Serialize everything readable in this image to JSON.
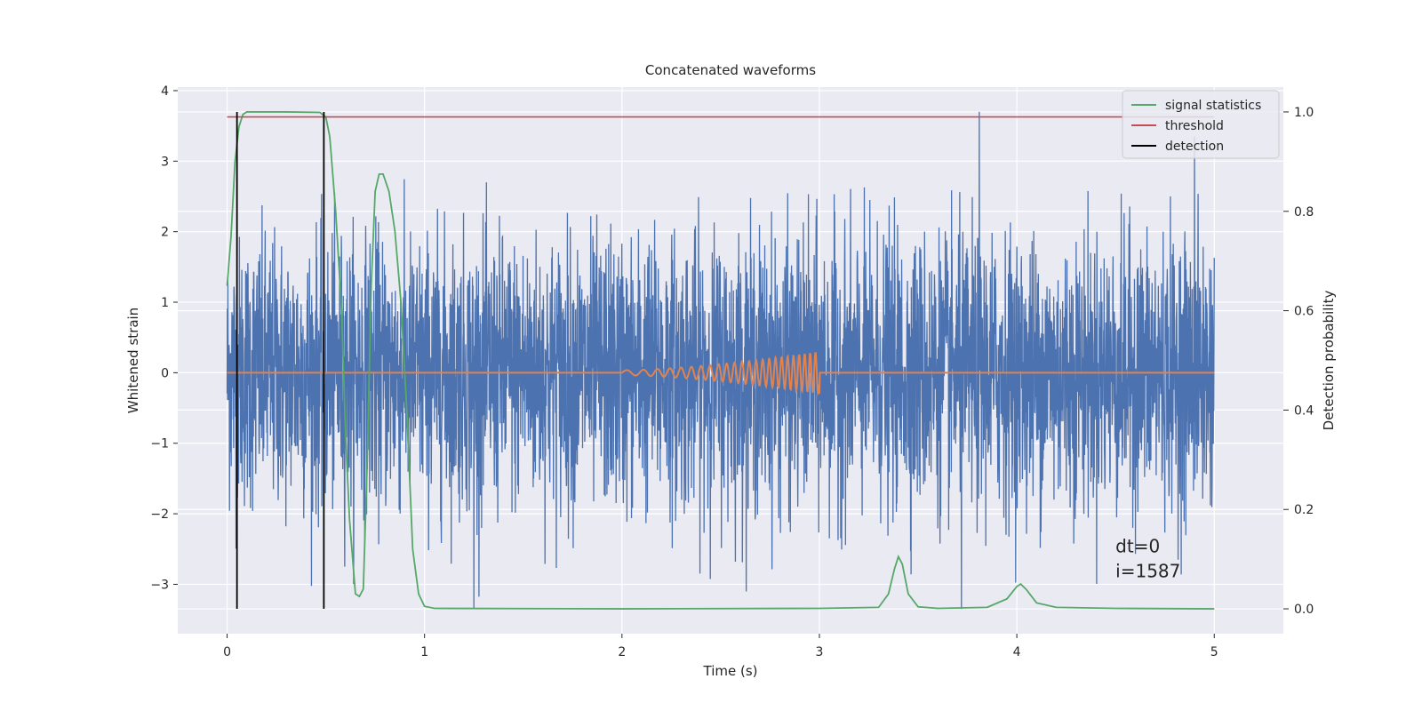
{
  "chart_data": {
    "type": "line",
    "title": "Concatenated waveforms",
    "xlabel": "Time (s)",
    "ylabel_left": "Whitened strain",
    "ylabel_right": "Detection probability",
    "xlim": [
      -0.25,
      5.35
    ],
    "ylim_left": [
      -3.7,
      4.05
    ],
    "ylim_right": [
      -0.05,
      1.05
    ],
    "x_ticks": [
      0,
      1,
      2,
      3,
      4,
      5
    ],
    "y_left_ticks": [
      -3,
      -2,
      -1,
      0,
      1,
      2,
      3,
      4
    ],
    "y_right_ticks": [
      0.0,
      0.2,
      0.4,
      0.6,
      0.8,
      1.0
    ],
    "grid": true,
    "legend_position": "top-right",
    "colors": {
      "noise": "#4c72b0",
      "waveform": "#dd8452",
      "signal_statistics": "#55a868",
      "threshold": "#c44e52",
      "detection": "#000000",
      "background": "#eaeaf2"
    },
    "series": [
      {
        "name": "",
        "axis": "left",
        "description_type": "whitened noise trace",
        "x_range": [
          0,
          5
        ],
        "envelope_typical": [
          -1.8,
          2.0
        ],
        "notable_peaks": [
          {
            "x": 3.81,
            "y": 3.7
          },
          {
            "x": 4.9,
            "y": 3.35
          },
          {
            "x": 1.25,
            "y": -3.35
          },
          {
            "x": 3.72,
            "y": -3.35
          }
        ]
      },
      {
        "name": "",
        "axis": "left",
        "description_type": "injected chirp waveform",
        "x_range": [
          0,
          5
        ],
        "chirp_start": 2.0,
        "chirp_end": 3.0,
        "max_amplitude": 0.3
      },
      {
        "name": "signal statistics",
        "axis": "right",
        "points": [
          [
            0.0,
            0.65
          ],
          [
            0.02,
            0.75
          ],
          [
            0.04,
            0.9
          ],
          [
            0.06,
            0.97
          ],
          [
            0.08,
            0.995
          ],
          [
            0.1,
            1.0
          ],
          [
            0.3,
            1.0
          ],
          [
            0.47,
            0.999
          ],
          [
            0.5,
            0.99
          ],
          [
            0.52,
            0.95
          ],
          [
            0.55,
            0.8
          ],
          [
            0.58,
            0.6
          ],
          [
            0.6,
            0.35
          ],
          [
            0.62,
            0.18
          ],
          [
            0.65,
            0.03
          ],
          [
            0.67,
            0.025
          ],
          [
            0.69,
            0.04
          ],
          [
            0.71,
            0.3
          ],
          [
            0.73,
            0.65
          ],
          [
            0.75,
            0.84
          ],
          [
            0.77,
            0.875
          ],
          [
            0.79,
            0.875
          ],
          [
            0.82,
            0.84
          ],
          [
            0.85,
            0.76
          ],
          [
            0.88,
            0.62
          ],
          [
            0.91,
            0.4
          ],
          [
            0.94,
            0.12
          ],
          [
            0.97,
            0.03
          ],
          [
            1.0,
            0.005
          ],
          [
            1.05,
            0.001
          ],
          [
            2.0,
            0.0
          ],
          [
            3.0,
            0.001
          ],
          [
            3.3,
            0.003
          ],
          [
            3.35,
            0.03
          ],
          [
            3.38,
            0.08
          ],
          [
            3.4,
            0.105
          ],
          [
            3.42,
            0.09
          ],
          [
            3.45,
            0.03
          ],
          [
            3.5,
            0.004
          ],
          [
            3.6,
            0.001
          ],
          [
            3.85,
            0.003
          ],
          [
            3.95,
            0.02
          ],
          [
            4.0,
            0.045
          ],
          [
            4.02,
            0.05
          ],
          [
            4.05,
            0.038
          ],
          [
            4.1,
            0.012
          ],
          [
            4.2,
            0.003
          ],
          [
            4.5,
            0.001
          ],
          [
            5.0,
            0.0
          ]
        ]
      },
      {
        "name": "threshold",
        "axis": "right",
        "points": [
          [
            0.0,
            0.99
          ],
          [
            5.0,
            0.99
          ]
        ]
      },
      {
        "name": "detection",
        "axis": "right",
        "vertical_lines_at_x": [
          0.05,
          0.49
        ],
        "y_from": 0.0,
        "y_to": 1.0
      }
    ],
    "annotations": [
      "dt=0",
      "i=1587"
    ]
  },
  "x_tick_labels": [
    "0",
    "1",
    "2",
    "3",
    "4",
    "5"
  ],
  "y_left_tick_labels": [
    "−3",
    "−2",
    "−1",
    "0",
    "1",
    "2",
    "3",
    "4"
  ],
  "y_right_tick_labels": [
    "0.0",
    "0.2",
    "0.4",
    "0.6",
    "0.8",
    "1.0"
  ],
  "legend": {
    "items": [
      "signal statistics",
      "threshold",
      "detection"
    ]
  }
}
